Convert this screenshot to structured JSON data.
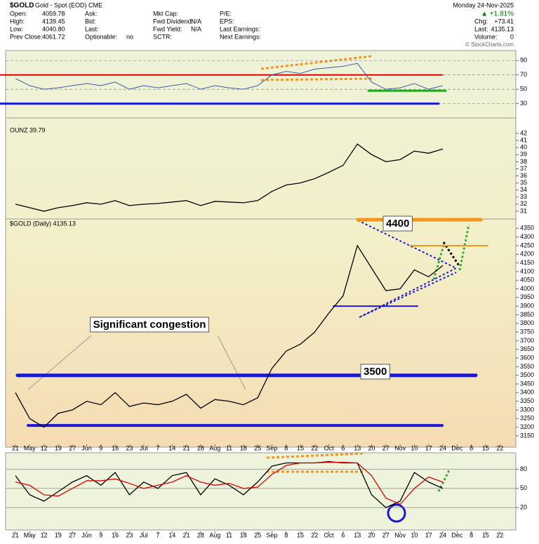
{
  "header": {
    "symbol": "$GOLD",
    "name": "Gold - Spot (EOD) CME",
    "date": "Monday 24-Nov-2025",
    "change_pct": "▲ +1.81%",
    "watermark": "© StockCharts.com",
    "fields": [
      {
        "label": "Open:",
        "value": "4059.78"
      },
      {
        "label": "High:",
        "value": "4139.45"
      },
      {
        "label": "Low:",
        "value": "4040.80"
      },
      {
        "label": "Prev Close:",
        "value": "4061.72"
      },
      {
        "label": "Ask:",
        "value": ""
      },
      {
        "label": "Bid:",
        "value": ""
      },
      {
        "label": "Last:",
        "value": ""
      },
      {
        "label": "Optionable:",
        "value": "no"
      },
      {
        "label": "Mkt Cap:",
        "value": ""
      },
      {
        "label": "Fwd Dividend:",
        "value": "N/A"
      },
      {
        "label": "Fwd Yield:",
        "value": "N/A"
      },
      {
        "label": "SCTR:",
        "value": ""
      },
      {
        "label": "P/E:",
        "value": ""
      },
      {
        "label": "EPS:",
        "value": ""
      },
      {
        "label": "Last Earnings:",
        "value": ""
      },
      {
        "label": "Next Earnings:",
        "value": ""
      }
    ],
    "quote": [
      {
        "label": "Chg:",
        "value": "+73.41"
      },
      {
        "label": "Last:",
        "value": "4135.13"
      },
      {
        "label": "Volume:",
        "value": "0"
      }
    ]
  },
  "chart_data": [
    {
      "type": "line",
      "ylim": [
        13,
        101
      ],
      "yticks": [
        90,
        70,
        50,
        30
      ],
      "color": "#3a5fa8",
      "values": [
        65,
        55,
        50,
        52,
        55,
        58,
        55,
        60,
        50,
        55,
        52,
        55,
        58,
        50,
        55,
        52,
        50,
        55,
        70,
        75,
        72,
        78,
        80,
        82,
        86,
        60,
        50,
        52,
        58,
        50,
        55,
        null,
        null,
        null,
        null
      ],
      "levels": [
        {
          "value": 70,
          "color": "#e00000"
        },
        {
          "value": 48,
          "color": "#22aa22"
        },
        {
          "value": 30,
          "color": "#1a1ad6"
        }
      ]
    },
    {
      "type": "line",
      "title": "OUNZ 39.79",
      "ylim": [
        30.1,
        43
      ],
      "yticks": [
        31,
        32,
        33,
        34,
        35,
        36,
        37,
        38,
        39,
        40,
        41,
        42
      ],
      "color": "#000000",
      "values": [
        32,
        31.5,
        31,
        31.5,
        31.8,
        32.2,
        32,
        32.5,
        31.8,
        32,
        32.1,
        32.3,
        32.5,
        31.8,
        32.4,
        32.3,
        32.2,
        32.5,
        33.8,
        34.7,
        35,
        35.6,
        36.5,
        37.5,
        40.5,
        39,
        38,
        38.3,
        39.5,
        39.2,
        39.8,
        null,
        null,
        null,
        null
      ]
    },
    {
      "type": "line",
      "title": "$GOLD (Daily) 4135.13",
      "ylim": [
        3105,
        4400
      ],
      "yticks": [
        3150,
        3200,
        3250,
        3300,
        3350,
        3400,
        3450,
        3500,
        3550,
        3600,
        3650,
        3700,
        3750,
        3800,
        3850,
        3900,
        3950,
        4000,
        4050,
        4100,
        4150,
        4200,
        4250,
        4300,
        4350
      ],
      "color": "#000000",
      "categories": [
        "21",
        "May",
        "12",
        "19",
        "27",
        "Jun",
        "9",
        "16",
        "23",
        "Jul",
        "7",
        "14",
        "21",
        "28",
        "Aug",
        "11",
        "18",
        "25",
        "Sep",
        "8",
        "15",
        "22",
        "Oct",
        "6",
        "13",
        "20",
        "27",
        "Nov",
        "10",
        "17",
        "24",
        "Dec",
        "8",
        "15",
        "22"
      ],
      "values": [
        3400,
        3250,
        3200,
        3280,
        3300,
        3350,
        3330,
        3400,
        3320,
        3340,
        3330,
        3350,
        3390,
        3310,
        3360,
        3350,
        3330,
        3370,
        3540,
        3640,
        3680,
        3750,
        3860,
        3960,
        4250,
        4120,
        3990,
        4000,
        4110,
        4070,
        4135,
        null,
        null,
        null,
        null
      ],
      "levels": [
        {
          "value": 4400,
          "color": "#f7941d"
        },
        {
          "value": 4250,
          "color": "#f7941d"
        },
        {
          "value": 3500,
          "color": "#1a1ad6"
        },
        {
          "value": 3210,
          "color": "#1a1ad6"
        },
        {
          "value": 3900,
          "color": "#1a1ad6"
        }
      ],
      "annotations": [
        "Significant congestion",
        "4400",
        "3500"
      ]
    },
    {
      "type": "line",
      "ylim": [
        -13,
        106
      ],
      "yticks": [
        80,
        50,
        20
      ],
      "categories": [
        "21",
        "May",
        "12",
        "19",
        "27",
        "Jun",
        "9",
        "16",
        "23",
        "Jul",
        "7",
        "14",
        "21",
        "28",
        "Aug",
        "11",
        "18",
        "25",
        "Sep",
        "8",
        "15",
        "22",
        "Oct",
        "6",
        "13",
        "20",
        "27",
        "Nov",
        "10",
        "17",
        "24",
        "Dec",
        "8",
        "15",
        "22"
      ],
      "series": [
        {
          "color": "#000000",
          "values": [
            70,
            40,
            30,
            45,
            60,
            70,
            55,
            75,
            40,
            60,
            50,
            70,
            75,
            40,
            65,
            55,
            40,
            60,
            85,
            90,
            90,
            90,
            92,
            90,
            90,
            40,
            20,
            30,
            75,
            60,
            50,
            null,
            null,
            null,
            null
          ]
        },
        {
          "color": "#e00000",
          "values": [
            60,
            55,
            40,
            38,
            50,
            62,
            62,
            65,
            58,
            50,
            55,
            60,
            70,
            60,
            55,
            58,
            50,
            52,
            72,
            86,
            90,
            90,
            91,
            91,
            90,
            70,
            35,
            25,
            50,
            68,
            60,
            null,
            null,
            null,
            null
          ]
        }
      ]
    }
  ]
}
